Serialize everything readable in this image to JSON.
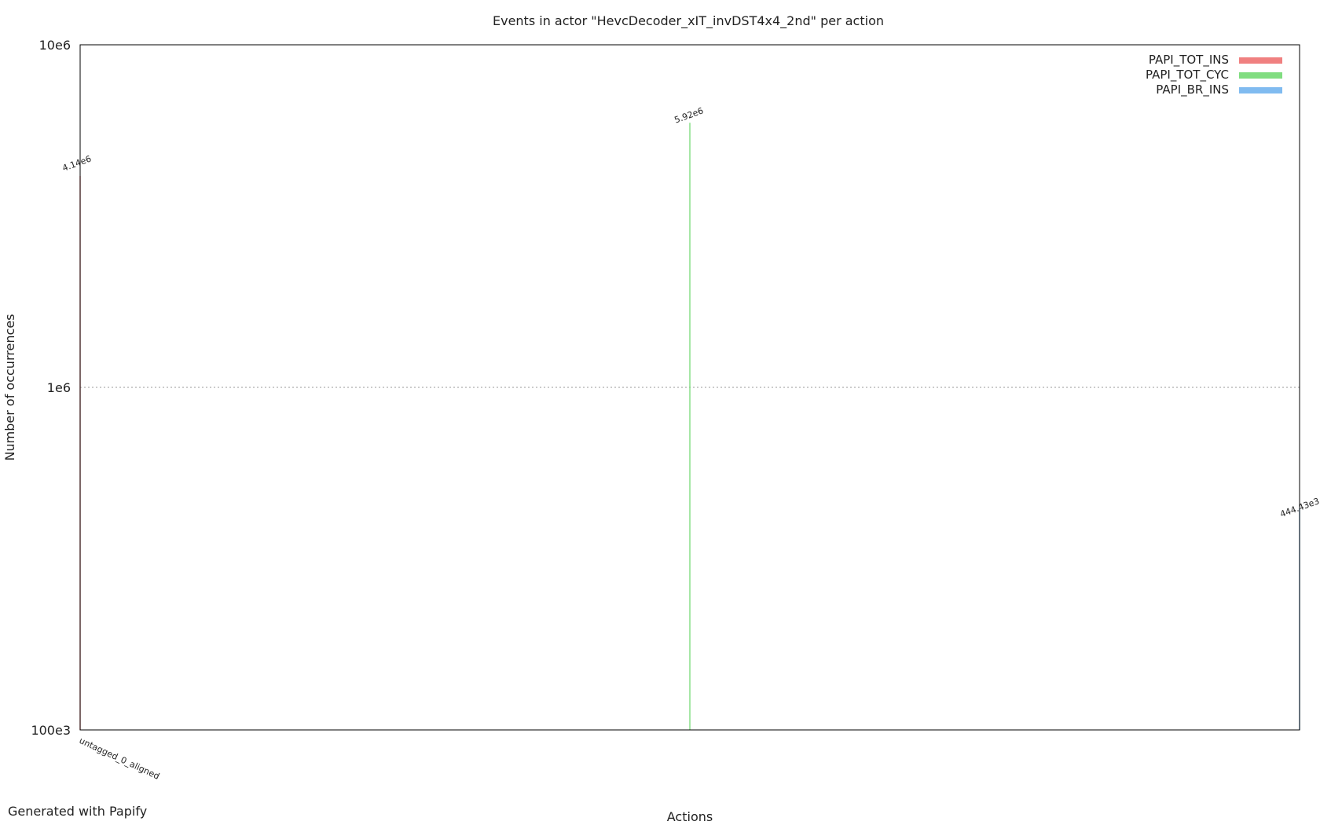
{
  "footer": "Generated with Papify",
  "chart_data": {
    "type": "bar",
    "title": "Events in actor \"HevcDecoder_xIT_invDST4x4_2nd\" per action",
    "xlabel": "Actions",
    "ylabel": "Number of occurrences",
    "yscale": "log",
    "ylim": [
      100000,
      10000000
    ],
    "yticks": [
      {
        "value": 100000,
        "label": "100e3"
      },
      {
        "value": 1000000,
        "label": "1e6"
      },
      {
        "value": 10000000,
        "label": "10e6"
      }
    ],
    "grid": true,
    "legend_position": "top-right",
    "categories": [
      "untagged_0_aligned"
    ],
    "series": [
      {
        "name": "PAPI_TOT_INS",
        "color": "#f08080",
        "values": [
          4140000
        ],
        "value_labels": [
          "4.14e6"
        ]
      },
      {
        "name": "PAPI_TOT_CYC",
        "color": "#80dd80",
        "values": [
          5920000
        ],
        "value_labels": [
          "5.92e6"
        ]
      },
      {
        "name": "PAPI_BR_INS",
        "color": "#80bbf0",
        "values": [
          444430
        ],
        "value_labels": [
          "444.43e3"
        ]
      }
    ]
  }
}
